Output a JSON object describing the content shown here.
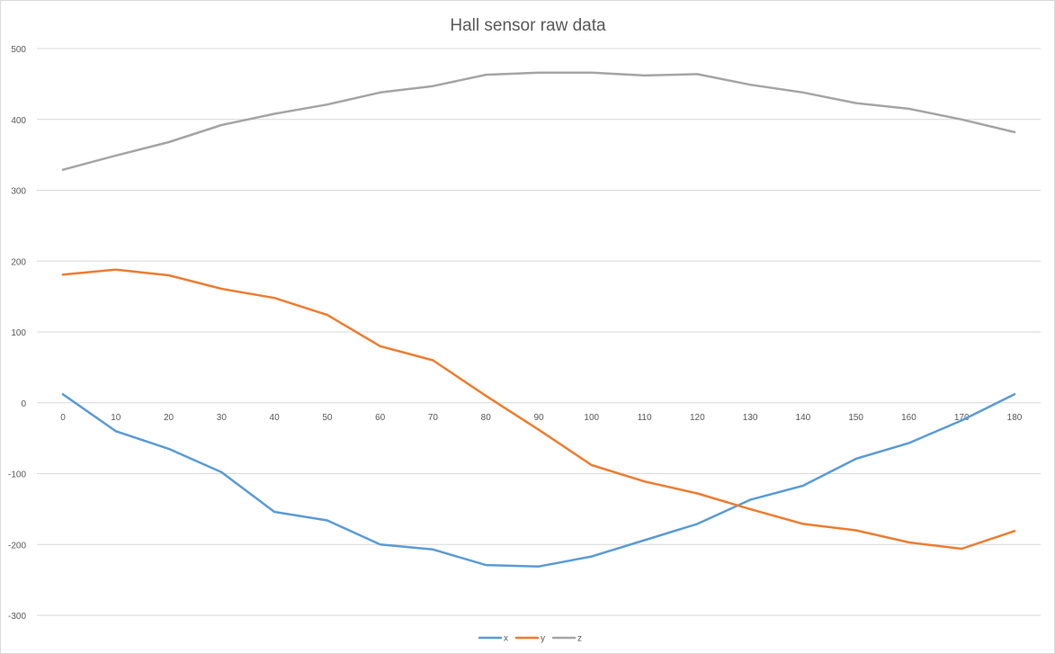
{
  "chart_data": {
    "type": "line",
    "title": "Hall sensor raw data",
    "xlabel": "",
    "ylabel": "",
    "x": [
      0,
      10,
      20,
      30,
      40,
      50,
      60,
      70,
      80,
      90,
      100,
      110,
      120,
      130,
      140,
      150,
      160,
      170,
      180
    ],
    "ylim": [
      -300,
      500
    ],
    "yticks": [
      -300,
      -200,
      -100,
      0,
      100,
      200,
      300,
      400,
      500
    ],
    "grid": true,
    "legend_position": "bottom",
    "series": [
      {
        "name": "x",
        "color": "#5b9bd5",
        "values": [
          12,
          -40,
          -65,
          -98,
          -154,
          -166,
          -200,
          -207,
          -229,
          -231,
          -217,
          -194,
          -171,
          -137,
          -117,
          -79,
          -57,
          -25,
          12
        ]
      },
      {
        "name": "y",
        "color": "#ed7d31",
        "values": [
          181,
          188,
          180,
          161,
          148,
          124,
          80,
          60,
          10,
          -38,
          -88,
          -111,
          -128,
          -150,
          -171,
          -180,
          -197,
          -206,
          -181
        ]
      },
      {
        "name": "z",
        "color": "#a5a5a5",
        "values": [
          329,
          349,
          368,
          392,
          408,
          421,
          438,
          447,
          463,
          466,
          466,
          462,
          464,
          449,
          438,
          423,
          415,
          400,
          382
        ]
      }
    ]
  }
}
